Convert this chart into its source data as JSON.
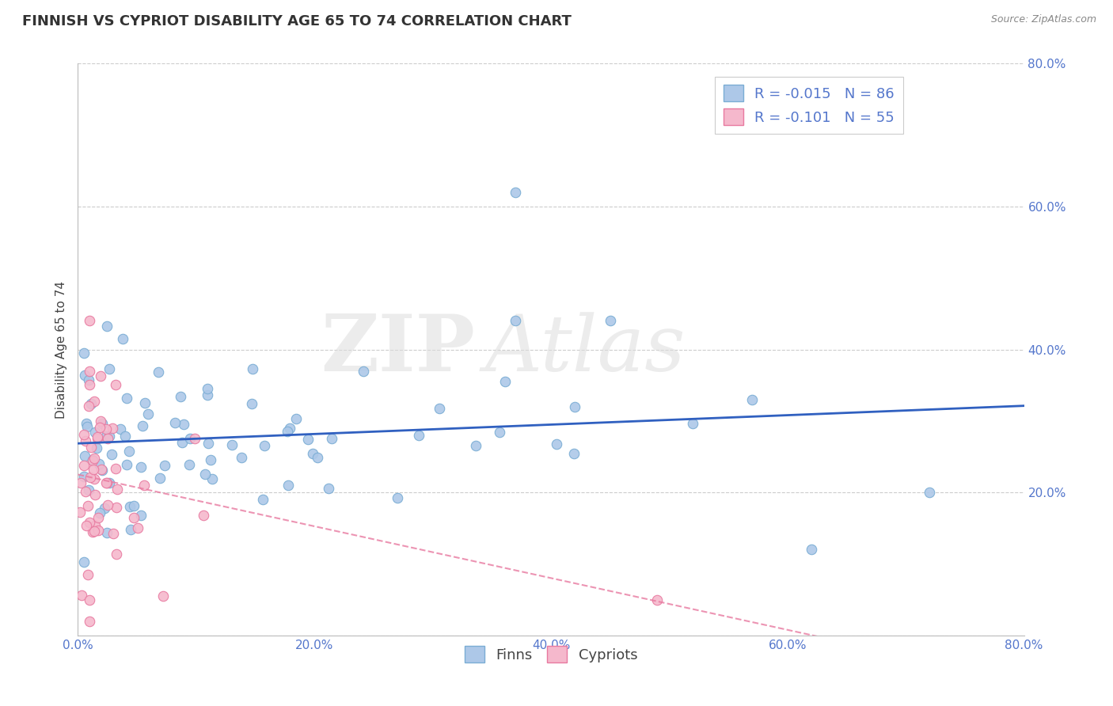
{
  "title": "FINNISH VS CYPRIOT DISABILITY AGE 65 TO 74 CORRELATION CHART",
  "source": "Source: ZipAtlas.com",
  "ylabel": "Disability Age 65 to 74",
  "xlim": [
    0.0,
    0.8
  ],
  "ylim": [
    0.0,
    0.8
  ],
  "xticks": [
    0.0,
    0.2,
    0.4,
    0.6,
    0.8
  ],
  "yticks": [
    0.0,
    0.2,
    0.4,
    0.6,
    0.8
  ],
  "xticklabels": [
    "0.0%",
    "20.0%",
    "40.0%",
    "60.0%",
    "80.0%"
  ],
  "right_yticklabels": [
    "",
    "20.0%",
    "40.0%",
    "60.0%",
    "80.0%"
  ],
  "finn_color": "#adc8e8",
  "cypriot_color": "#f5b8cc",
  "finn_edge_color": "#7aadd4",
  "cypriot_edge_color": "#e87aa0",
  "trend_finn_color": "#3060c0",
  "trend_cypriot_color": "#e87aa0",
  "legend_finn_label": "R = -0.015   N = 86",
  "legend_cypriot_label": "R = -0.101   N = 55",
  "finn_scatter_label": "Finns",
  "cypriot_scatter_label": "Cypriots",
  "watermark_zip": "ZIP",
  "watermark_atlas": "Atlas",
  "background_color": "#ffffff",
  "grid_color": "#cccccc",
  "title_color": "#333333",
  "tick_label_color": "#5577cc",
  "title_fontsize": 13,
  "axis_label_fontsize": 11,
  "tick_fontsize": 11,
  "legend_fontsize": 13,
  "marker_size": 9,
  "finn_seed": 42,
  "cypriot_seed": 123
}
